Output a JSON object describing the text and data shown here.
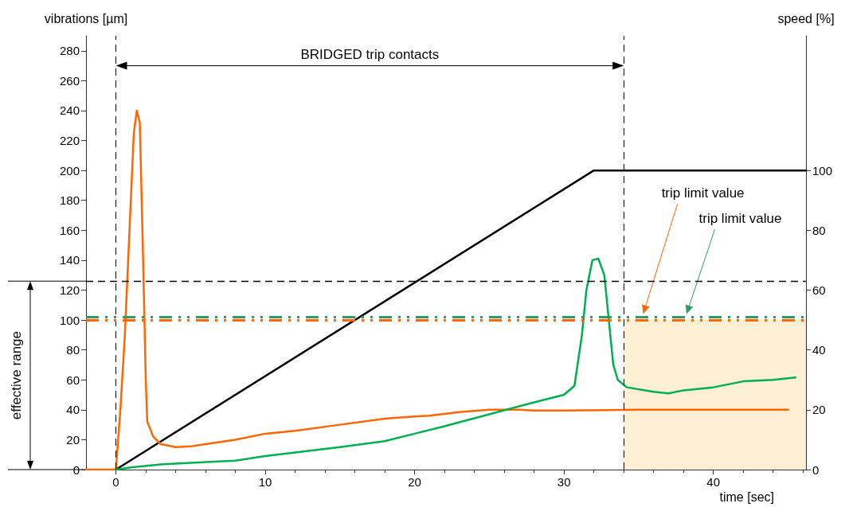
{
  "chart_data": {
    "type": "line",
    "xlabel": "time [sec]",
    "ylabel": "vibrations [µm]",
    "y2label": "speed [%]",
    "xlim": [
      -2,
      46.2
    ],
    "xticks": [
      0,
      10,
      20,
      30,
      40
    ],
    "ylim": [
      0,
      290
    ],
    "yticks": [
      0,
      20,
      40,
      60,
      80,
      100,
      120,
      140,
      160,
      180,
      200,
      220,
      240,
      260,
      280
    ],
    "y2lim": [
      0,
      145
    ],
    "y2ticks": [
      0,
      20,
      40,
      60,
      80,
      100
    ],
    "marker": "none",
    "grid": false,
    "series": [
      {
        "type": "area",
        "color": "#fdefd3",
        "x": [
          34,
          46.2
        ],
        "values": [
          100,
          100
        ]
      },
      {
        "color": "#000000",
        "axis": "y2",
        "x": [
          0,
          32,
          46.2
        ],
        "values": [
          0,
          100,
          100
        ]
      },
      {
        "color": "#ff6600",
        "x": [
          -2,
          0,
          0.3,
          0.6,
          1.0,
          1.2,
          1.4,
          1.6,
          1.8,
          2.0,
          2.1,
          2.5,
          3,
          4,
          5,
          6,
          8,
          10,
          12,
          15,
          18,
          20,
          21,
          23,
          25,
          27,
          28,
          30,
          35,
          40,
          45
        ],
        "values": [
          0,
          0,
          40,
          90,
          180,
          225,
          240,
          232,
          150,
          60,
          32,
          22,
          17,
          15,
          15.5,
          17,
          20,
          24,
          26,
          30,
          34,
          35.5,
          36,
          38.5,
          40,
          40,
          39.5,
          39.5,
          40,
          40,
          40
        ]
      },
      {
        "color": "#00b050",
        "x": [
          0,
          1,
          3,
          5,
          8,
          10,
          15,
          18,
          20,
          22,
          25,
          28,
          30,
          30.7,
          31.2,
          31.5,
          31.9,
          32.3,
          32.7,
          33,
          33.3,
          33.6,
          34.2,
          36,
          37,
          38,
          40,
          42,
          44,
          45.5
        ],
        "values": [
          0,
          1.5,
          3.5,
          4.5,
          6,
          9,
          15,
          19,
          24,
          29,
          37,
          45,
          50,
          56,
          90,
          120,
          140,
          141,
          130,
          100,
          70,
          60,
          55,
          52,
          51,
          53,
          55,
          59,
          60,
          61.6
        ]
      }
    ],
    "ref_lines": [
      {
        "axis": "y",
        "value": 126,
        "color": "#000000",
        "line_style": "dashed"
      },
      {
        "axis": "x",
        "value": 0,
        "color": "#000000",
        "line_style": "dashed"
      },
      {
        "axis": "x",
        "value": 34,
        "color": "#000000",
        "line_style": "dashed"
      },
      {
        "axis": "y",
        "value": 100,
        "color": "#ff6600",
        "line_style": "dashed"
      },
      {
        "axis": "y",
        "value": 102,
        "color": "#339966",
        "line_style": "dashed"
      }
    ],
    "annotations": [
      "BRIDGED trip contacts",
      "effective range",
      {
        "text": "trip limit value",
        "x": 35.3,
        "y": 104
      },
      {
        "text": "trip limit value",
        "x": 38.2,
        "y": 104
      }
    ]
  }
}
